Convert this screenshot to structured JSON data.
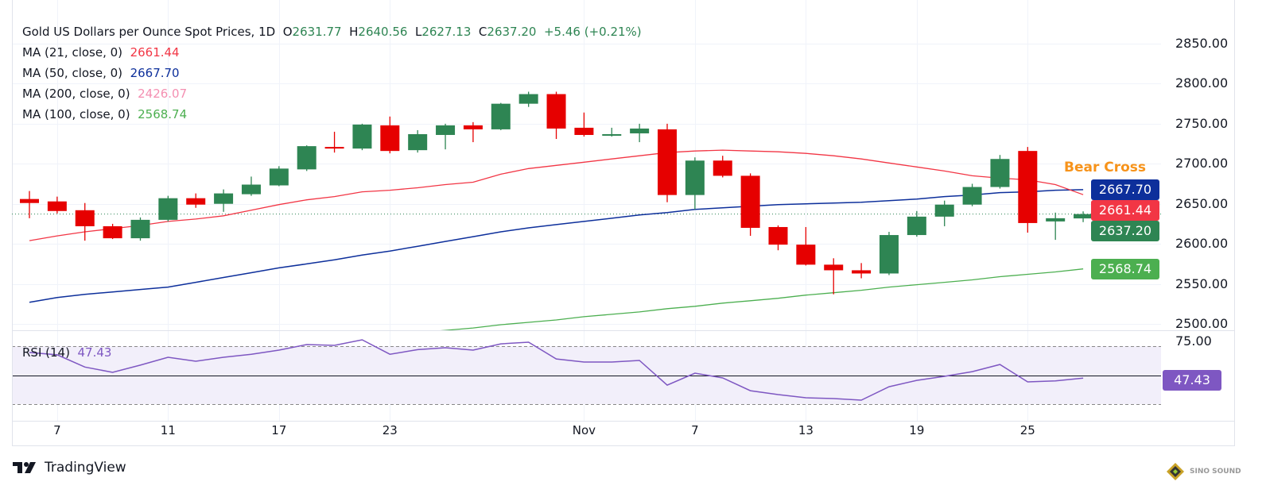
{
  "header": {
    "title": "Gold US Dollars per Ounce Spot Prices, 1D",
    "o_label": "O",
    "o": "2631.77",
    "h_label": "H",
    "h": "2640.56",
    "l_label": "L",
    "l": "2627.13",
    "c_label": "C",
    "c": "2637.20",
    "change": "+5.46 (+0.21%)"
  },
  "indicators": [
    {
      "label": "MA (21, close, 0)",
      "value": "2661.44",
      "color": "#f23645"
    },
    {
      "label": "MA (50, close, 0)",
      "value": "2667.70",
      "color": "#0d2f9b"
    },
    {
      "label": "MA (200, close, 0)",
      "value": "2426.07",
      "color": "#f48fb1"
    },
    {
      "label": "MA (100, close, 0)",
      "value": "2568.74",
      "color": "#4caf50"
    }
  ],
  "annotation": "Bear Cross",
  "rsi": {
    "label": "RSI (14)",
    "value": "47.43",
    "color": "#7e57c2"
  },
  "branding": {
    "tradingview": "TradingView",
    "watermark": "SINO SOUND"
  },
  "colors": {
    "up": "#2e8553",
    "down": "#e60000",
    "ma21": "#f23645",
    "ma50": "#0d2f9b",
    "ma100": "#4caf50",
    "rsi": "#7e57c2"
  },
  "chart_data": {
    "type": "candlestick",
    "title": "Gold US Dollars per Ounce Spot Prices, 1D",
    "ylim": [
      2500,
      2850
    ],
    "y_ticks": [
      "2850.00",
      "2800.00",
      "2750.00",
      "2700.00",
      "2650.00",
      "2600.00",
      "2550.00",
      "2500.00"
    ],
    "x_tick_labels": [
      {
        "label": "7",
        "index": 1
      },
      {
        "label": "11",
        "index": 5
      },
      {
        "label": "17",
        "index": 9
      },
      {
        "label": "23",
        "index": 13
      },
      {
        "label": "Nov",
        "index": 20
      },
      {
        "label": "7",
        "index": 24
      },
      {
        "label": "13",
        "index": 28
      },
      {
        "label": "19",
        "index": 32
      },
      {
        "label": "25",
        "index": 36
      }
    ],
    "price_badges": [
      {
        "value": "2667.70",
        "series": "ma50"
      },
      {
        "value": "2661.44",
        "series": "ma21"
      },
      {
        "value": "2637.20",
        "series": "close"
      },
      {
        "value": "2568.74",
        "series": "ma100"
      }
    ],
    "ohlc": [
      [
        2656,
        2666,
        2632,
        2651
      ],
      [
        2653,
        2659,
        2638,
        2641
      ],
      [
        2642,
        2651,
        2604,
        2622
      ],
      [
        2622,
        2625,
        2606,
        2607
      ],
      [
        2607,
        2633,
        2604,
        2630
      ],
      [
        2630,
        2660,
        2628,
        2657
      ],
      [
        2657,
        2663,
        2645,
        2649
      ],
      [
        2650,
        2668,
        2640,
        2663
      ],
      [
        2662,
        2684,
        2660,
        2674
      ],
      [
        2673,
        2697,
        2672,
        2694
      ],
      [
        2693,
        2723,
        2691,
        2722
      ],
      [
        2721,
        2740,
        2714,
        2719
      ],
      [
        2719,
        2750,
        2717,
        2749
      ],
      [
        2748,
        2759,
        2713,
        2716
      ],
      [
        2717,
        2742,
        2714,
        2737
      ],
      [
        2736,
        2750,
        2718,
        2748
      ],
      [
        2748,
        2752,
        2727,
        2743
      ],
      [
        2743,
        2776,
        2742,
        2775
      ],
      [
        2775,
        2790,
        2771,
        2787
      ],
      [
        2787,
        2790,
        2731,
        2744
      ],
      [
        2745,
        2764,
        2734,
        2736
      ],
      [
        2736,
        2745,
        2734,
        2737
      ],
      [
        2738,
        2750,
        2727,
        2744
      ],
      [
        2743,
        2750,
        2652,
        2661
      ],
      [
        2661,
        2708,
        2643,
        2704
      ],
      [
        2704,
        2710,
        2683,
        2685
      ],
      [
        2685,
        2688,
        2610,
        2620
      ],
      [
        2621,
        2623,
        2592,
        2599
      ],
      [
        2599,
        2621,
        2573,
        2574
      ],
      [
        2574,
        2582,
        2537,
        2567
      ],
      [
        2567,
        2576,
        2557,
        2563
      ],
      [
        2563,
        2615,
        2561,
        2611
      ],
      [
        2611,
        2641,
        2609,
        2634
      ],
      [
        2634,
        2654,
        2622,
        2649
      ],
      [
        2649,
        2675,
        2647,
        2671
      ],
      [
        2671,
        2711,
        2669,
        2706
      ],
      [
        2716,
        2721,
        2614,
        2626
      ],
      [
        2628,
        2639,
        2605,
        2632
      ],
      [
        2631.77,
        2640.56,
        2627.13,
        2637.2
      ]
    ],
    "ma21": [
      2604,
      2610,
      2615,
      2619,
      2623,
      2628,
      2631,
      2635,
      2642,
      2649,
      2655,
      2659,
      2665,
      2667,
      2670,
      2674,
      2677,
      2687,
      2694,
      2698,
      2702,
      2706,
      2710,
      2714,
      2716,
      2717,
      2716,
      2715,
      2713,
      2710,
      2706,
      2701,
      2696,
      2691,
      2685,
      2682,
      2680,
      2674,
      2661.44
    ],
    "ma50": [
      2527,
      2533,
      2537,
      2540,
      2543,
      2546,
      2552,
      2558,
      2564,
      2570,
      2575,
      2580,
      2586,
      2591,
      2597,
      2603,
      2609,
      2615,
      2620,
      2624,
      2628,
      2632,
      2636,
      2639,
      2643,
      2645,
      2647,
      2649,
      2650,
      2651,
      2652,
      2654,
      2656,
      2659,
      2661,
      2664,
      2665,
      2667,
      2667.7
    ],
    "ma100": [
      2441,
      2444,
      2448,
      2451,
      2455,
      2458,
      2461,
      2465,
      2468,
      2472,
      2475,
      2478,
      2482,
      2485,
      2489,
      2492,
      2495,
      2499,
      2502,
      2505,
      2509,
      2512,
      2515,
      2519,
      2522,
      2526,
      2529,
      2532,
      2536,
      2539,
      2542,
      2546,
      2549,
      2552,
      2555,
      2559,
      2562,
      2565,
      2568.74
    ],
    "rsi_ticks": [
      "75.00"
    ],
    "rsi_levels": [
      75,
      50,
      25
    ],
    "rsi_values": [
      69.5,
      67.5,
      57,
      52.4,
      58.6,
      65.4,
      62,
      65.4,
      68,
      71.6,
      76.4,
      75.7,
      80.5,
      68,
      72,
      73.6,
      71.6,
      77,
      78.4,
      64,
      61.3,
      61.3,
      62.7,
      41.4,
      51.7,
      47.6,
      36.6,
      33.2,
      30.5,
      29.8,
      28.4,
      40,
      45.5,
      49,
      53,
      59.2,
      44.2,
      45,
      47.43
    ]
  }
}
